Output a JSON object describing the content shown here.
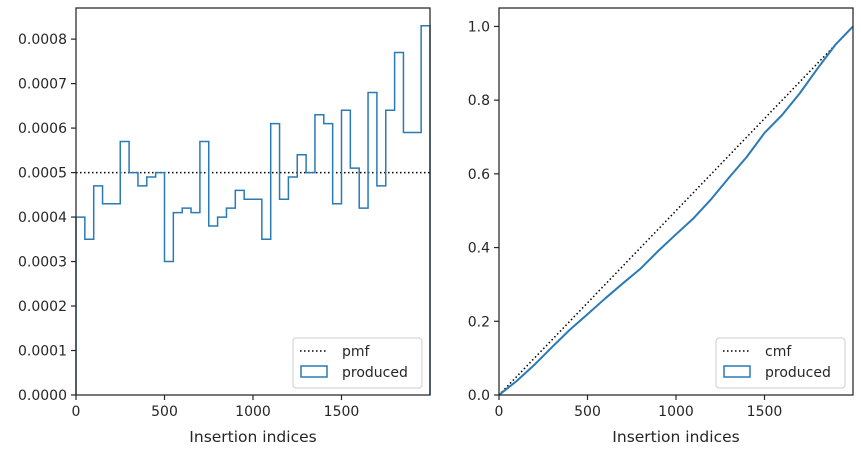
{
  "chart_data": [
    {
      "type": "histogram-step",
      "xlabel": "Insertion indices",
      "ylabel": "",
      "xlim": [
        0,
        2000
      ],
      "ylim": [
        0,
        0.00087
      ],
      "xticks": [
        0,
        500,
        1000,
        1500
      ],
      "yticks": [
        0,
        0.0001,
        0.0002,
        0.0003,
        0.0004,
        0.0005,
        0.0006,
        0.0007,
        0.0008
      ],
      "ytick_labels": [
        "0.0000",
        "0.0001",
        "0.0002",
        "0.0003",
        "0.0004",
        "0.0005",
        "0.0006",
        "0.0007",
        "0.0008"
      ],
      "reference": {
        "name": "pmf",
        "value": 0.0005
      },
      "bin_edges": [
        0,
        50,
        100,
        150,
        200,
        250,
        300,
        350,
        400,
        450,
        500,
        550,
        600,
        650,
        700,
        750,
        800,
        850,
        900,
        950,
        1000,
        1050,
        1100,
        1150,
        1200,
        1250,
        1300,
        1350,
        1400,
        1450,
        1500,
        1550,
        1600,
        1650,
        1700,
        1750,
        1800,
        1850,
        1900,
        1950,
        2000
      ],
      "series": [
        {
          "name": "produced",
          "values": [
            0.0004,
            0.00035,
            0.00047,
            0.00043,
            0.00043,
            0.00057,
            0.0005,
            0.00047,
            0.00049,
            0.0005,
            0.0003,
            0.00041,
            0.00042,
            0.00041,
            0.00057,
            0.00038,
            0.0004,
            0.00042,
            0.00046,
            0.00044,
            0.00044,
            0.00035,
            0.00061,
            0.00044,
            0.00049,
            0.00054,
            0.0005,
            0.00063,
            0.00061,
            0.00043,
            0.00064,
            0.00051,
            0.00042,
            0.00068,
            0.00047,
            0.00064,
            0.00077,
            0.00059,
            0.00059,
            0.00083
          ]
        }
      ],
      "legend": {
        "placement": "lower-right",
        "entries": [
          "pmf",
          "produced"
        ]
      },
      "grid": false
    },
    {
      "type": "line",
      "xlabel": "Insertion indices",
      "ylabel": "",
      "xlim": [
        0,
        2000
      ],
      "ylim": [
        0,
        1.05
      ],
      "xticks": [
        0,
        500,
        1000,
        1500
      ],
      "yticks": [
        0,
        0.2,
        0.4,
        0.6,
        0.8,
        1.0
      ],
      "ytick_labels": [
        "0.0",
        "0.2",
        "0.4",
        "0.6",
        "0.8",
        "1.0"
      ],
      "reference": {
        "name": "cmf",
        "x": [
          0,
          2000
        ],
        "y": [
          0,
          1.0
        ]
      },
      "series": [
        {
          "name": "produced",
          "x": [
            0,
            100,
            200,
            300,
            400,
            500,
            600,
            700,
            800,
            900,
            1000,
            1100,
            1200,
            1300,
            1400,
            1500,
            1600,
            1700,
            1800,
            1900,
            2000
          ],
          "y": [
            0,
            0.038,
            0.082,
            0.13,
            0.177,
            0.219,
            0.262,
            0.303,
            0.343,
            0.391,
            0.436,
            0.48,
            0.532,
            0.59,
            0.646,
            0.711,
            0.76,
            0.819,
            0.886,
            0.95,
            1.0
          ]
        }
      ],
      "legend": {
        "placement": "lower-right",
        "entries": [
          "cmf",
          "produced"
        ]
      },
      "grid": false
    }
  ],
  "colors": {
    "series": "#2a7ab5",
    "reference": "#000000",
    "axes": "#262626",
    "legend_border": "#cccccc"
  }
}
